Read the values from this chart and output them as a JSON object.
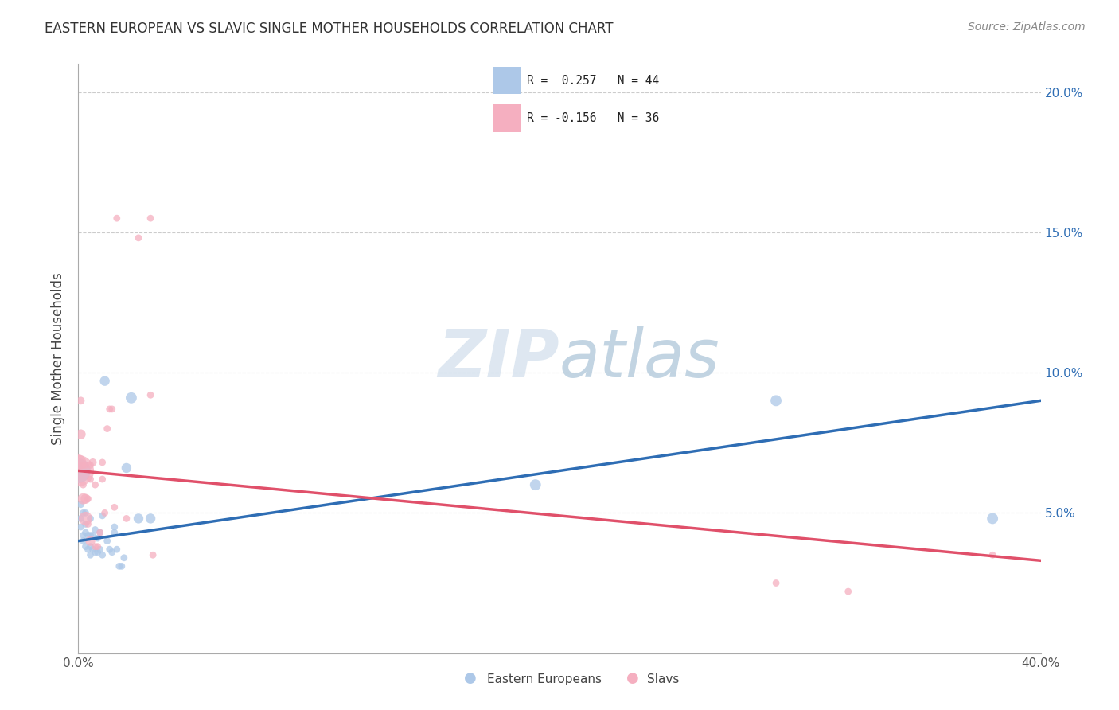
{
  "title": "EASTERN EUROPEAN VS SLAVIC SINGLE MOTHER HOUSEHOLDS CORRELATION CHART",
  "source": "Source: ZipAtlas.com",
  "ylabel": "Single Mother Households",
  "watermark_zip": "ZIP",
  "watermark_atlas": "atlas",
  "legend_blue_r": "R =  0.257",
  "legend_blue_n": "N = 44",
  "legend_pink_r": "R = -0.156",
  "legend_pink_n": "N = 36",
  "blue_color": "#adc8e8",
  "pink_color": "#f5afc0",
  "blue_line_color": "#2e6db4",
  "pink_line_color": "#e0506a",
  "grid_color": "#cccccc",
  "blue_scatter": {
    "x": [
      0.0,
      0.001,
      0.001,
      0.001,
      0.002,
      0.002,
      0.002,
      0.003,
      0.003,
      0.003,
      0.003,
      0.004,
      0.004,
      0.005,
      0.005,
      0.005,
      0.005,
      0.006,
      0.006,
      0.007,
      0.007,
      0.008,
      0.008,
      0.009,
      0.009,
      0.01,
      0.01,
      0.011,
      0.012,
      0.013,
      0.014,
      0.015,
      0.015,
      0.016,
      0.017,
      0.018,
      0.019,
      0.02,
      0.022,
      0.025,
      0.03,
      0.19,
      0.29,
      0.38
    ],
    "y": [
      0.065,
      0.048,
      0.053,
      0.045,
      0.04,
      0.042,
      0.05,
      0.038,
      0.043,
      0.046,
      0.05,
      0.037,
      0.042,
      0.035,
      0.038,
      0.042,
      0.048,
      0.037,
      0.042,
      0.036,
      0.044,
      0.036,
      0.041,
      0.037,
      0.043,
      0.035,
      0.049,
      0.097,
      0.04,
      0.037,
      0.036,
      0.043,
      0.045,
      0.037,
      0.031,
      0.031,
      0.034,
      0.066,
      0.091,
      0.048,
      0.048,
      0.06,
      0.09,
      0.048
    ],
    "sizes": [
      500,
      40,
      40,
      40,
      40,
      40,
      40,
      40,
      40,
      40,
      40,
      40,
      40,
      40,
      40,
      40,
      40,
      40,
      40,
      40,
      40,
      40,
      40,
      40,
      40,
      40,
      40,
      80,
      40,
      40,
      40,
      40,
      40,
      40,
      40,
      40,
      40,
      80,
      100,
      80,
      80,
      100,
      100,
      100
    ]
  },
  "pink_scatter": {
    "x": [
      0.0,
      0.0,
      0.001,
      0.001,
      0.002,
      0.002,
      0.002,
      0.003,
      0.003,
      0.003,
      0.004,
      0.004,
      0.005,
      0.005,
      0.005,
      0.006,
      0.007,
      0.007,
      0.008,
      0.009,
      0.01,
      0.01,
      0.011,
      0.012,
      0.013,
      0.014,
      0.015,
      0.016,
      0.02,
      0.025,
      0.03,
      0.03,
      0.031,
      0.29,
      0.32,
      0.38
    ],
    "y": [
      0.065,
      0.068,
      0.078,
      0.09,
      0.055,
      0.06,
      0.067,
      0.048,
      0.055,
      0.067,
      0.046,
      0.055,
      0.04,
      0.062,
      0.067,
      0.068,
      0.038,
      0.06,
      0.038,
      0.043,
      0.062,
      0.068,
      0.05,
      0.08,
      0.087,
      0.087,
      0.052,
      0.155,
      0.048,
      0.148,
      0.155,
      0.092,
      0.035,
      0.025,
      0.022,
      0.035
    ],
    "sizes": [
      800,
      200,
      80,
      50,
      100,
      40,
      40,
      150,
      80,
      40,
      40,
      40,
      80,
      40,
      40,
      50,
      40,
      40,
      40,
      40,
      40,
      40,
      40,
      40,
      40,
      40,
      40,
      40,
      40,
      40,
      40,
      40,
      40,
      40,
      40,
      40
    ]
  },
  "xlim": [
    0.0,
    0.4
  ],
  "ylim": [
    0.0,
    0.21
  ],
  "xticks": [
    0.0,
    0.1,
    0.2,
    0.3,
    0.4
  ],
  "xtick_labels": [
    "0.0%",
    "",
    "",
    "",
    "40.0%"
  ],
  "yticks": [
    0.0,
    0.05,
    0.1,
    0.15,
    0.2
  ],
  "ytick_labels_right": [
    "",
    "5.0%",
    "10.0%",
    "15.0%",
    "20.0%"
  ],
  "blue_trend": {
    "x_start": 0.0,
    "x_end": 0.4,
    "y_start": 0.04,
    "y_end": 0.09
  },
  "pink_trend": {
    "x_start": 0.0,
    "x_end": 0.4,
    "y_start": 0.065,
    "y_end": 0.033
  }
}
